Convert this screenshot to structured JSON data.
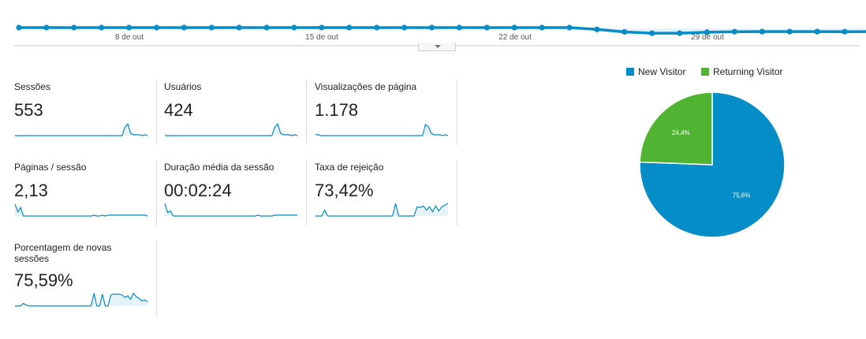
{
  "trend": {
    "x_labels": [
      "8 de out",
      "15 de out",
      "22 de out",
      "29 de out"
    ],
    "values": [
      553,
      553,
      552,
      553,
      553,
      553,
      553,
      553,
      553,
      553,
      553,
      553,
      553,
      553,
      553,
      553,
      553,
      553,
      553,
      553,
      553,
      440,
      280,
      200,
      200,
      258,
      293,
      299,
      299,
      300,
      295,
      300,
      298
    ],
    "accent_color": "#058dc7"
  },
  "metrics": [
    {
      "label": "Sessões",
      "value": "553",
      "spark": [
        0,
        0,
        0,
        0,
        0,
        0,
        0,
        0,
        0,
        0,
        0,
        0,
        0,
        0,
        0,
        0,
        0,
        0,
        0,
        0,
        0,
        0,
        0,
        0,
        0,
        0,
        0,
        0,
        0,
        0,
        0,
        0,
        0,
        0,
        0,
        0,
        0,
        0,
        0,
        10,
        14,
        3,
        1,
        1,
        1,
        0,
        1,
        0
      ]
    },
    {
      "label": "Usuários",
      "value": "424",
      "spark": [
        0,
        0,
        0,
        0,
        0,
        0,
        0,
        0,
        0,
        0,
        0,
        0,
        0,
        0,
        0,
        0,
        0,
        0,
        0,
        0,
        0,
        0,
        0,
        0,
        0,
        0,
        0,
        0,
        0,
        0,
        0,
        0,
        0,
        0,
        0,
        0,
        0,
        0,
        0,
        10,
        14,
        3,
        1,
        1,
        1,
        0,
        1,
        0
      ]
    },
    {
      "label": "Visualizações de página",
      "value": "1.178",
      "spark": [
        1,
        1,
        0,
        0,
        0,
        0,
        0,
        0,
        0,
        0,
        0,
        0,
        0,
        0,
        0,
        0,
        0,
        0,
        0,
        0,
        0,
        0,
        0,
        0,
        0,
        0,
        0,
        0,
        0,
        0,
        0,
        0,
        0,
        0,
        0,
        0,
        0,
        0,
        0,
        13,
        11,
        3,
        1,
        1,
        1,
        0,
        1,
        0
      ]
    },
    {
      "label": "Páginas / sessão",
      "value": "2,13",
      "spark": [
        14,
        5,
        10,
        0,
        0,
        0,
        0,
        0,
        0,
        0,
        0,
        0,
        0,
        0,
        0,
        0,
        0,
        0,
        0,
        0,
        0,
        0,
        0,
        0,
        0,
        0,
        0,
        0,
        1,
        0,
        0,
        1,
        0,
        1,
        1,
        1,
        1,
        1,
        1,
        1,
        1,
        1,
        1,
        1,
        1,
        1,
        1,
        0
      ]
    },
    {
      "label": "Duração média da sessão",
      "value": "00:02:24",
      "spark": [
        15,
        4,
        6,
        0,
        0,
        0,
        0,
        0,
        0,
        0,
        0,
        0,
        0,
        0,
        0,
        0,
        0,
        0,
        0,
        0,
        0,
        0,
        0,
        0,
        0,
        0,
        0,
        0,
        0,
        0,
        0,
        0,
        0,
        1,
        0,
        0,
        0,
        0,
        0,
        1,
        1,
        1,
        1,
        1,
        1,
        1,
        1,
        1
      ]
    },
    {
      "label": "Taxa de rejeição",
      "value": "73,42%",
      "spark": [
        0,
        0,
        0,
        7,
        0,
        0,
        0,
        0,
        0,
        0,
        0,
        0,
        0,
        0,
        0,
        0,
        0,
        0,
        0,
        0,
        0,
        0,
        0,
        0,
        0,
        0,
        15,
        0,
        0,
        0,
        0,
        0,
        0,
        11,
        10,
        12,
        7,
        11,
        5,
        12,
        6,
        11,
        13,
        15
      ]
    },
    {
      "label": "Porcentagem de novas sessões",
      "value": "75,59%",
      "spark": [
        0,
        0,
        0,
        3,
        1,
        0,
        0,
        0,
        0,
        0,
        0,
        0,
        0,
        0,
        0,
        0,
        0,
        0,
        0,
        0,
        0,
        0,
        0,
        0,
        0,
        0,
        0,
        0,
        15,
        0,
        0,
        14,
        0,
        0,
        13,
        14,
        14,
        14,
        13,
        10,
        12,
        8,
        15,
        11,
        9,
        6,
        7,
        5
      ]
    }
  ],
  "pie": {
    "legend": [
      {
        "label": "New Visitor",
        "color": "#058dc7"
      },
      {
        "label": "Returning Visitor",
        "color": "#50b432"
      }
    ],
    "slices": [
      {
        "name": "New Visitor",
        "value": 75.6,
        "label": "75,6%",
        "color": "#058dc7"
      },
      {
        "name": "Returning Visitor",
        "value": 24.4,
        "label": "24,4%",
        "color": "#50b432"
      }
    ]
  }
}
